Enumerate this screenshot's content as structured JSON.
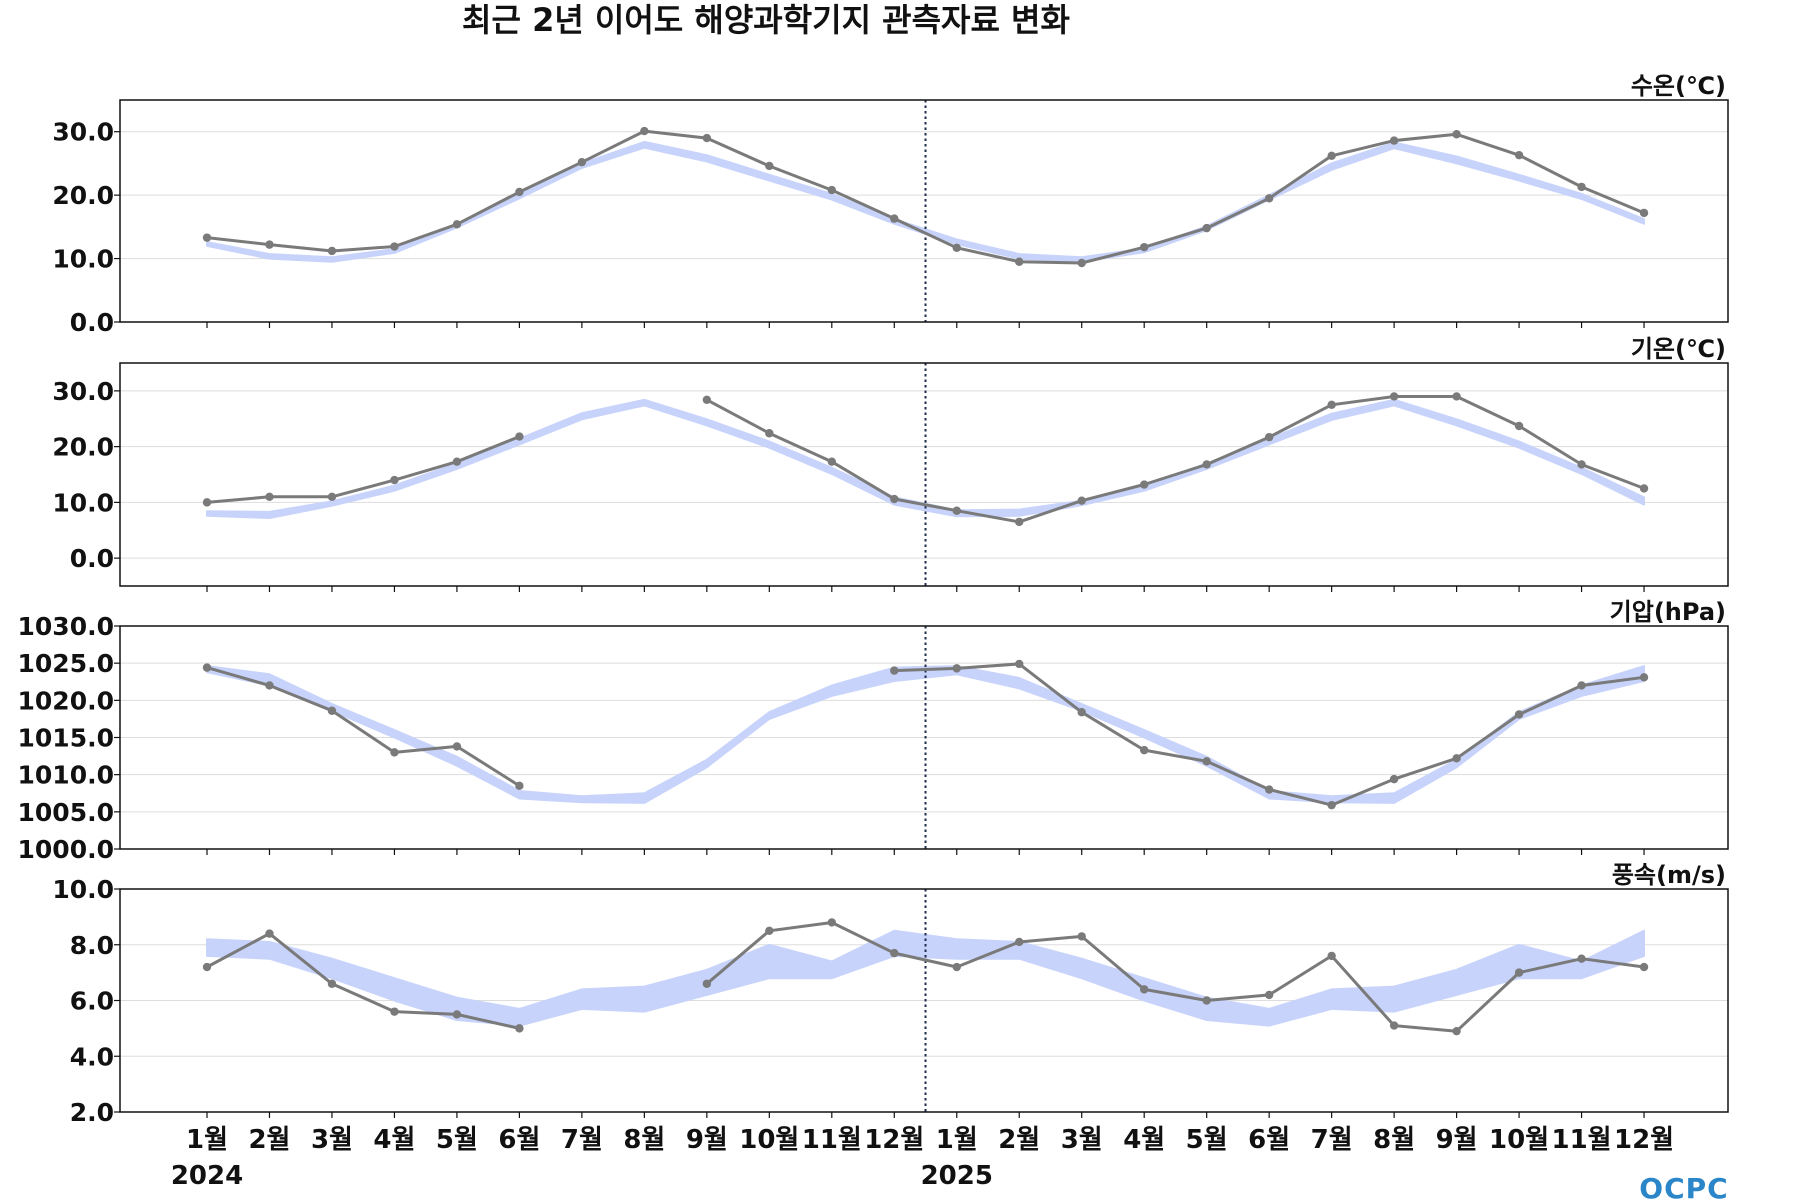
{
  "chart_data": {
    "type": "line",
    "title": "최근 2년 이어도 해양과학기지 관측자료 변화",
    "categories": [
      "1월",
      "2월",
      "3월",
      "4월",
      "5월",
      "6월",
      "7월",
      "8월",
      "9월",
      "10월",
      "11월",
      "12월",
      "1월",
      "2월",
      "3월",
      "4월",
      "5월",
      "6월",
      "7월",
      "8월",
      "9월",
      "10월",
      "11월",
      "12월"
    ],
    "years": [
      {
        "label": "2024",
        "index": 0
      },
      {
        "label": "2025",
        "index": 12
      }
    ],
    "divider_after_index": 11,
    "logo": "OCPC",
    "colors": {
      "observed": "#7a7a7a",
      "band": "#c7d3fb",
      "divider": "#1f2d4d",
      "grid": "#dddddd"
    },
    "panels": [
      {
        "label": "수온(℃)",
        "ylim": [
          0,
          35
        ],
        "yticks": [
          0,
          10,
          20,
          30
        ],
        "tick_format": "0.0",
        "observed": [
          13.3,
          12.2,
          11.2,
          11.9,
          15.4,
          20.5,
          25.2,
          30.1,
          29.0,
          24.6,
          20.8,
          16.3,
          11.7,
          9.5,
          9.3,
          11.8,
          14.8,
          19.5,
          26.2,
          28.6,
          29.6,
          26.3,
          21.3,
          17.2
        ],
        "band_low": [
          12.0,
          10.0,
          9.5,
          10.9,
          14.9,
          19.5,
          24.3,
          27.5,
          25.3,
          22.3,
          19.3,
          15.5,
          12.3,
          10.0,
          9.5,
          11.0,
          14.5,
          19.3,
          24.0,
          27.4,
          25.0,
          22.3,
          19.4,
          15.5
        ],
        "band_high": [
          12.6,
          10.7,
          10.2,
          11.5,
          15.4,
          20.2,
          25.0,
          28.4,
          26.3,
          23.2,
          20.2,
          16.2,
          13.0,
          10.7,
          10.2,
          11.6,
          15.1,
          20.0,
          25.0,
          28.3,
          26.1,
          23.2,
          20.2,
          16.2
        ]
      },
      {
        "label": "기온(℃)",
        "ylim": [
          -5,
          35
        ],
        "yticks": [
          0,
          10,
          20,
          30
        ],
        "tick_format": "0.0",
        "observed": [
          10.0,
          11.0,
          11.0,
          14.0,
          17.3,
          21.8,
          null,
          null,
          28.4,
          22.4,
          17.3,
          10.6,
          8.5,
          6.5,
          10.3,
          13.2,
          16.8,
          21.7,
          27.5,
          29.0,
          29.0,
          23.7,
          16.8,
          12.5
        ],
        "band_low": [
          7.6,
          7.2,
          9.4,
          12.1,
          16.0,
          20.4,
          24.9,
          27.4,
          23.8,
          19.8,
          15.1,
          9.6,
          7.5,
          7.6,
          9.5,
          12.1,
          16.0,
          20.4,
          24.8,
          27.4,
          23.8,
          19.8,
          15.1,
          9.6
        ],
        "band_high": [
          8.4,
          8.3,
          10.2,
          13.0,
          17.0,
          21.4,
          26.0,
          28.4,
          24.9,
          20.9,
          16.2,
          10.9,
          8.6,
          8.7,
          10.3,
          13.0,
          17.0,
          21.4,
          25.9,
          28.4,
          24.9,
          20.9,
          16.2,
          10.9
        ]
      },
      {
        "label": "기압(hPa)",
        "ylim": [
          1000,
          1030
        ],
        "yticks": [
          1000,
          1005,
          1010,
          1015,
          1020,
          1025,
          1030
        ],
        "tick_format": "0.0",
        "observed": [
          1024.4,
          1022.0,
          1018.6,
          1013.0,
          1013.8,
          1008.5,
          null,
          null,
          null,
          null,
          null,
          1024.0,
          1024.3,
          1024.9,
          1018.4,
          1013.3,
          1011.8,
          1008.0,
          1005.9,
          1009.4,
          1012.2,
          1018.1,
          1022.0,
          1023.1
        ],
        "band_low": [
          1023.8,
          1022.0,
          1018.6,
          1015.0,
          1011.2,
          1006.8,
          1006.3,
          1006.2,
          1011.0,
          1017.5,
          1020.6,
          1022.6,
          1023.5,
          1021.6,
          1018.6,
          1015.0,
          1011.2,
          1006.8,
          1006.3,
          1006.2,
          1011.0,
          1017.5,
          1020.6,
          1022.6
        ],
        "band_high": [
          1024.6,
          1023.5,
          1019.5,
          1016.0,
          1012.4,
          1007.8,
          1007.1,
          1007.5,
          1012.0,
          1018.4,
          1022.0,
          1024.4,
          1024.6,
          1023.0,
          1019.5,
          1016.0,
          1012.4,
          1007.8,
          1007.1,
          1007.5,
          1012.0,
          1018.4,
          1022.0,
          1024.6
        ]
      },
      {
        "label": "풍속(m/s)",
        "ylim": [
          2,
          10
        ],
        "yticks": [
          2,
          4,
          6,
          8,
          10
        ],
        "tick_format": "0.0",
        "observed": [
          7.2,
          8.4,
          6.6,
          5.6,
          5.5,
          5.0,
          null,
          null,
          6.6,
          8.5,
          8.8,
          7.7,
          7.2,
          8.1,
          8.3,
          6.4,
          6.0,
          6.2,
          7.6,
          5.1,
          4.9,
          7.0,
          7.5,
          7.2
        ],
        "band_low": [
          7.6,
          7.5,
          6.8,
          6.0,
          5.3,
          5.1,
          5.7,
          5.6,
          6.2,
          6.8,
          6.8,
          7.6,
          7.5,
          7.5,
          6.8,
          6.0,
          5.3,
          5.1,
          5.7,
          5.6,
          6.2,
          6.8,
          6.8,
          7.6
        ],
        "band_high": [
          8.2,
          8.1,
          7.5,
          6.8,
          6.1,
          5.7,
          6.4,
          6.5,
          7.1,
          8.0,
          7.4,
          8.5,
          8.2,
          8.1,
          7.5,
          6.8,
          6.1,
          5.7,
          6.4,
          6.5,
          7.1,
          8.0,
          7.4,
          8.5
        ]
      }
    ]
  }
}
